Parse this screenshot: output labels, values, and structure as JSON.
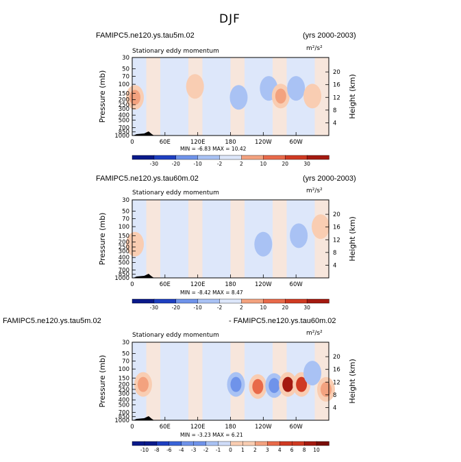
{
  "figure_title": "DJF",
  "panels": [
    {
      "left_title": "FAMIPC5.ne120.ys.tau5m.02",
      "right_title": "(yrs 2000-2003)",
      "subtitle": "Stationary eddy momentum",
      "units": "m²/s²",
      "minmax": "MIN = -6.83   MAX = 10.42",
      "colorbar_labels": [
        "-30",
        "-20",
        "-10",
        "-2",
        "2",
        "10",
        "20",
        "30"
      ]
    },
    {
      "left_title": "FAMIPC5.ne120.ys.tau60m.02",
      "right_title": "(yrs 2000-2003)",
      "subtitle": "Stationary eddy momentum",
      "units": "m²/s²",
      "minmax": "MIN = -8.42   MAX = 8.47",
      "colorbar_labels": [
        "-30",
        "-20",
        "-10",
        "-2",
        "2",
        "10",
        "20",
        "30"
      ]
    },
    {
      "left_title": "FAMIPC5.ne120.ys.tau5m.02",
      "right_title": "- FAMIPC5.ne120.ys.tau60m.02",
      "subtitle": "Stationary eddy momentum",
      "units": "m²/s²",
      "minmax": "MIN = -3.23   MAX = 6.21",
      "colorbar_labels": [
        "-10",
        "-8",
        "-6",
        "-4",
        "-3",
        "-2",
        "-1",
        "0",
        "1",
        "2",
        "3",
        "4",
        "6",
        "8",
        "10"
      ]
    }
  ],
  "chart_data": [
    {
      "type": "heatmap",
      "title": "Stationary eddy momentum",
      "xlabel": "",
      "ylabel": "Pressure (mb)",
      "ylabel_right": "Height (km)",
      "x_ticks": [
        "0",
        "60E",
        "120E",
        "180",
        "120W",
        "60W"
      ],
      "y_ticks": [
        "30",
        "50",
        "70",
        "100",
        "150",
        "200",
        "250",
        "300",
        "400",
        "500",
        "700",
        "850",
        "1000"
      ],
      "y_right_ticks": [
        "20",
        "16",
        "12",
        "8",
        "4"
      ],
      "xlim": [
        0,
        360
      ],
      "ylim": [
        1000,
        30
      ],
      "y_scale": "log",
      "min": -6.83,
      "max": 10.42,
      "color_levels": [
        -30,
        -20,
        -10,
        -2,
        2,
        10,
        20,
        30
      ],
      "features": [
        {
          "lon": 5,
          "p": 180,
          "sign": "positive",
          "level": 10
        },
        {
          "lon": 115,
          "p": 110,
          "sign": "positive",
          "level": 2
        },
        {
          "lon": 195,
          "p": 180,
          "sign": "negative",
          "level": -10
        },
        {
          "lon": 250,
          "p": 120,
          "sign": "negative",
          "level": -10
        },
        {
          "lon": 272,
          "p": 170,
          "sign": "positive",
          "level": 10
        },
        {
          "lon": 300,
          "p": 120,
          "sign": "negative",
          "level": -10
        },
        {
          "lon": 330,
          "p": 170,
          "sign": "positive",
          "level": 2
        }
      ]
    },
    {
      "type": "heatmap",
      "title": "Stationary eddy momentum",
      "xlabel": "",
      "ylabel": "Pressure (mb)",
      "ylabel_right": "Height (km)",
      "x_ticks": [
        "0",
        "60E",
        "120E",
        "180",
        "120W",
        "60W"
      ],
      "y_ticks": [
        "30",
        "50",
        "70",
        "100",
        "150",
        "200",
        "250",
        "300",
        "400",
        "500",
        "700",
        "850",
        "1000"
      ],
      "y_right_ticks": [
        "20",
        "16",
        "12",
        "8",
        "4"
      ],
      "xlim": [
        0,
        360
      ],
      "ylim": [
        1000,
        30
      ],
      "y_scale": "log",
      "min": -8.42,
      "max": 8.47,
      "color_levels": [
        -30,
        -20,
        -10,
        -2,
        2,
        10,
        20,
        30
      ],
      "features": [
        {
          "lon": 5,
          "p": 220,
          "sign": "positive",
          "level": 2
        },
        {
          "lon": 240,
          "p": 220,
          "sign": "negative",
          "level": -10
        },
        {
          "lon": 305,
          "p": 150,
          "sign": "negative",
          "level": -10
        },
        {
          "lon": 345,
          "p": 100,
          "sign": "positive",
          "level": 2
        }
      ]
    },
    {
      "type": "heatmap",
      "title": "Stationary eddy momentum",
      "xlabel": "",
      "ylabel": "Pressure (mb)",
      "ylabel_right": "Height (km)",
      "x_ticks": [
        "0",
        "60E",
        "120E",
        "180",
        "120W",
        "60W"
      ],
      "y_ticks": [
        "30",
        "50",
        "70",
        "100",
        "150",
        "200",
        "250",
        "300",
        "400",
        "500",
        "700",
        "850",
        "1000"
      ],
      "y_right_ticks": [
        "20",
        "16",
        "12",
        "8",
        "4"
      ],
      "xlim": [
        0,
        360
      ],
      "ylim": [
        1000,
        30
      ],
      "y_scale": "log",
      "min": -3.23,
      "max": 6.21,
      "color_levels": [
        -10,
        -8,
        -6,
        -4,
        -3,
        -2,
        -1,
        0,
        1,
        2,
        3,
        4,
        6,
        8,
        10
      ],
      "features": [
        {
          "lon": 20,
          "p": 200,
          "sign": "positive",
          "level": 2
        },
        {
          "lon": 190,
          "p": 200,
          "sign": "negative",
          "level": -3
        },
        {
          "lon": 230,
          "p": 220,
          "sign": "positive",
          "level": 3
        },
        {
          "lon": 260,
          "p": 210,
          "sign": "negative",
          "level": -3
        },
        {
          "lon": 285,
          "p": 200,
          "sign": "positive",
          "level": 6
        },
        {
          "lon": 310,
          "p": 200,
          "sign": "positive",
          "level": 4
        },
        {
          "lon": 330,
          "p": 120,
          "sign": "negative",
          "level": -2
        },
        {
          "lon": 355,
          "p": 250,
          "sign": "positive",
          "level": 2
        }
      ]
    }
  ],
  "colors": {
    "neg": [
      "#0a1a8a",
      "#1e3fc0",
      "#3a64d8",
      "#6f93ea",
      "#a9c2f4",
      "#cfdcf8"
    ],
    "neutral_neg": "#dde7fa",
    "neutral_pos": "#fbe5d6",
    "pos": [
      "#f9cdb2",
      "#f3a27f",
      "#e86a4a",
      "#cf3a22",
      "#a41a10",
      "#7a0e08"
    ]
  }
}
